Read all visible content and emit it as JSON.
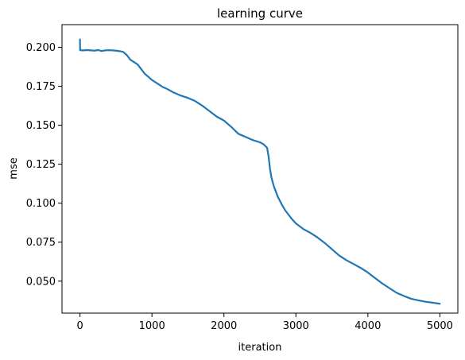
{
  "chart_data": {
    "type": "line",
    "title": "learning curve",
    "xlabel": "iteration",
    "ylabel": "mse",
    "xlim": [
      -250,
      5250
    ],
    "ylim": [
      0.0295,
      0.2145
    ],
    "grid": false,
    "legend": "none",
    "xticks": [
      0,
      1000,
      2000,
      3000,
      4000,
      5000
    ],
    "xtick_labels": [
      "0",
      "1000",
      "2000",
      "3000",
      "4000",
      "5000"
    ],
    "yticks": [
      0.05,
      0.075,
      0.1,
      0.125,
      0.15,
      0.175,
      0.2
    ],
    "ytick_labels": [
      "0.050",
      "0.075",
      "0.100",
      "0.125",
      "0.150",
      "0.175",
      "0.200"
    ],
    "series": [
      {
        "color": "#1f77b4",
        "x": [
          0,
          1,
          2,
          5,
          20,
          50,
          100,
          150,
          200,
          250,
          300,
          350,
          400,
          450,
          500,
          550,
          600,
          650,
          700,
          750,
          800,
          850,
          900,
          950,
          1000,
          1050,
          1100,
          1150,
          1200,
          1300,
          1400,
          1500,
          1600,
          1700,
          1800,
          1900,
          2000,
          2100,
          2200,
          2250,
          2300,
          2400,
          2500,
          2550,
          2600,
          2620,
          2640,
          2660,
          2680,
          2700,
          2750,
          2800,
          2850,
          2900,
          2950,
          3000,
          3100,
          3200,
          3300,
          3400,
          3500,
          3600,
          3700,
          3800,
          3900,
          4000,
          4100,
          4200,
          4300,
          4400,
          4500,
          4600,
          4700,
          4800,
          4900,
          5000
        ],
        "values": [
          0.205,
          0.2,
          0.198,
          0.1985,
          0.198,
          0.198,
          0.1982,
          0.198,
          0.1978,
          0.1982,
          0.1976,
          0.198,
          0.1981,
          0.198,
          0.1978,
          0.1975,
          0.197,
          0.195,
          0.192,
          0.1905,
          0.189,
          0.186,
          0.183,
          0.181,
          0.179,
          0.1775,
          0.176,
          0.1745,
          0.1735,
          0.171,
          0.169,
          0.1675,
          0.1655,
          0.1625,
          0.159,
          0.1555,
          0.153,
          0.149,
          0.1445,
          0.1435,
          0.1425,
          0.1405,
          0.139,
          0.1378,
          0.1355,
          0.13,
          0.122,
          0.1165,
          0.113,
          0.11,
          0.104,
          0.0995,
          0.0955,
          0.0925,
          0.0895,
          0.087,
          0.0835,
          0.081,
          0.078,
          0.0745,
          0.0705,
          0.0665,
          0.0635,
          0.061,
          0.0585,
          0.0555,
          0.052,
          0.0485,
          0.0455,
          0.0425,
          0.0405,
          0.0387,
          0.0377,
          0.0368,
          0.0362,
          0.0355
        ]
      }
    ]
  }
}
